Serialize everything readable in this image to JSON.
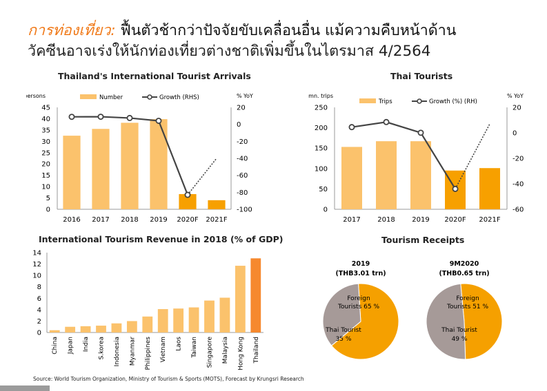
{
  "header": {
    "title_highlight": "การท่องเที่ยว:",
    "title_line1_rest": " ฟื้นตัวช้ากว่าปัจจัยขับเคลื่อนอื่น   แม้ความคืบหน้าด้าน",
    "title_line2": "วัคซีนอาจเร่งให้นักท่องเที่ยวต่างชาติเพิ่มขึ้นในไตรมาส   4/2564"
  },
  "colors": {
    "bar": "#fbc26c",
    "bar_forecast": "#f7a000",
    "bar_thailand": "#f6892e",
    "line": "#444444",
    "pie_orange": "#f5a000",
    "pie_grey": "#a69a98",
    "title_accent": "#f07a1a"
  },
  "chart_data": [
    {
      "type": "bar",
      "title": "Thailand's International Tourist Arrivals",
      "ylabel": "mn. persons",
      "y2label": "% YoY",
      "categories": [
        "2016",
        "2017",
        "2018",
        "2019",
        "2020F",
        "2021F"
      ],
      "series": [
        {
          "name": "Number",
          "values": [
            32.5,
            35.5,
            38.2,
            39.8,
            6.7,
            4.0
          ],
          "axis": "left"
        },
        {
          "name": "Growth (RHS)",
          "values": [
            8.9,
            9.0,
            7.5,
            4.2,
            -83.0,
            -40.0
          ],
          "axis": "right",
          "type": "line"
        }
      ],
      "ylim": [
        0,
        45
      ],
      "yticks": [
        0,
        5,
        10,
        15,
        20,
        25,
        30,
        35,
        40,
        45
      ],
      "y2lim": [
        -100,
        20
      ],
      "y2ticks": [
        20,
        0,
        -20,
        -40,
        -60,
        -80,
        -100
      ],
      "legend": "top"
    },
    {
      "type": "bar",
      "title": "Thai Tourists",
      "ylabel": "mn. trips",
      "y2label": "% YoY",
      "categories": [
        "2017",
        "2018",
        "2019",
        "2020F",
        "2021F"
      ],
      "series": [
        {
          "name": "Trips",
          "values": [
            153,
            167,
            167,
            95,
            101
          ],
          "axis": "left"
        },
        {
          "name": "Growth (%) (RH)",
          "values": [
            4.5,
            8.5,
            0.1,
            -44.0,
            7.0
          ],
          "axis": "right",
          "type": "line"
        }
      ],
      "ylim": [
        0,
        250
      ],
      "yticks": [
        0,
        50,
        100,
        150,
        200,
        250
      ],
      "y2lim": [
        -60,
        20
      ],
      "y2ticks": [
        20,
        0,
        -20,
        -40,
        -60
      ],
      "legend": "top"
    },
    {
      "type": "bar",
      "title": "International Tourism Revenue in 2018 (% of GDP)",
      "categories": [
        "China",
        "Japan",
        "India",
        "S.korea",
        "Indonesia",
        "Myanmar",
        "Philippines",
        "Vietnam",
        "Laos",
        "Taiwan",
        "Singapore",
        "Malaysia",
        "Hong Kong",
        "Thailand"
      ],
      "values": [
        0.4,
        1.0,
        1.1,
        1.2,
        1.6,
        2.0,
        2.8,
        4.1,
        4.2,
        4.4,
        5.6,
        6.1,
        11.7,
        13.0
      ],
      "ylim": [
        0,
        14
      ],
      "yticks": [
        0,
        2,
        4,
        6,
        8,
        10,
        12,
        14
      ]
    },
    {
      "type": "pie",
      "title": "Tourism Receipts",
      "pies": [
        {
          "title": "2019",
          "subtitle": "(THB3.01 trn)",
          "slices": [
            {
              "label": "Foreign Tourists",
              "value": 65,
              "display": "65 %"
            },
            {
              "label": "Thai Tourist",
              "value": 35,
              "display": "35 %"
            }
          ]
        },
        {
          "title": "9M2020",
          "subtitle": "(THB0.65 trn)",
          "slices": [
            {
              "label": "Foreign Tourists",
              "value": 51,
              "display": "51 %"
            },
            {
              "label": "Thai Tourist",
              "value": 49,
              "display": "49 %"
            }
          ]
        }
      ]
    }
  ],
  "source": "Source: World Tourism Organization, Ministry of Tourism & Sports (MOTS), Forecast by Krungsri Research"
}
